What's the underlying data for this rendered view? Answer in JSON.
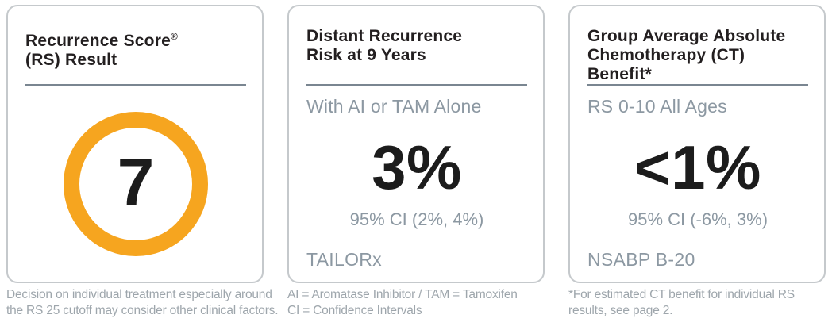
{
  "colors": {
    "accent_orange": "#F6A51F",
    "divider": "#7A8691",
    "heading_text": "#231F20",
    "value_text": "#1C1C1C",
    "muted_text": "#8C98A2",
    "footnote_text": "#9EA6AC",
    "card_border": "#C5C9CC",
    "background": "#FFFFFF"
  },
  "cards": {
    "rs": {
      "title_line1": "Recurrence Score",
      "title_sup": "®",
      "title_line2": "(RS) Result",
      "score": "7",
      "footnote_line1": "Decision on individual treatment especially around",
      "footnote_line2": "the RS 25 cutoff may consider other clinical factors."
    },
    "recurrence_risk": {
      "title_line1": "Distant Recurrence",
      "title_line2": "Risk at 9 Years",
      "subtitle": "With AI or TAM Alone",
      "value": "3%",
      "ci": "95% CI (2%, 4%)",
      "study": "TAILORx",
      "footnote_line1": "AI = Aromatase Inhibitor / TAM = Tamoxifen",
      "footnote_line2": "CI = Confidence Intervals"
    },
    "ct_benefit": {
      "title_line1": "Group Average Absolute",
      "title_line2": "Chemotherapy (CT)",
      "title_line3": "Benefit*",
      "subtitle": "RS 0-10 All Ages",
      "value": "<1%",
      "ci": "95% CI (-6%, 3%)",
      "study": "NSABP B-20",
      "footnote_line1": "*For estimated CT benefit for individual RS",
      "footnote_line2": "results, see page 2."
    }
  }
}
